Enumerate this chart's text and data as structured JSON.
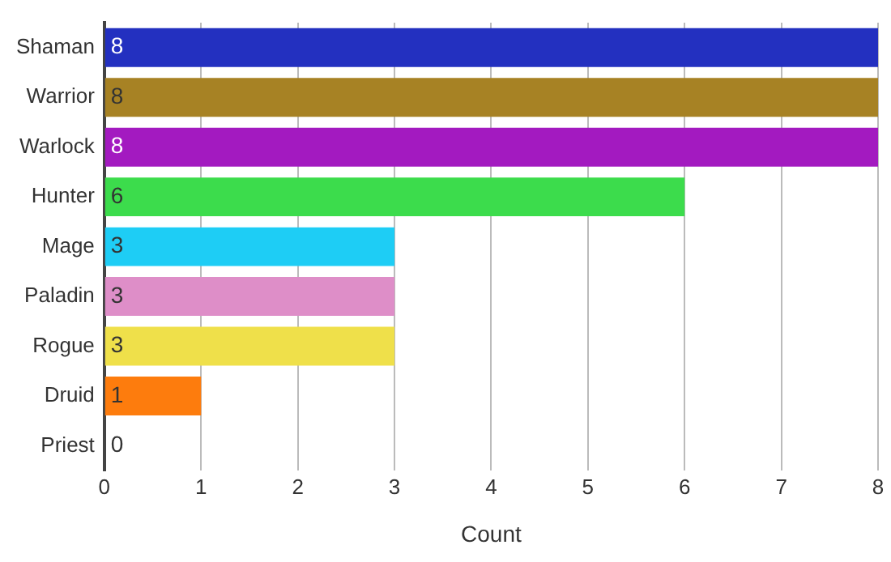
{
  "chart_data": {
    "type": "bar",
    "orientation": "horizontal",
    "xlabel": "Count",
    "categories": [
      "Shaman",
      "Warrior",
      "Warlock",
      "Hunter",
      "Mage",
      "Paladin",
      "Rogue",
      "Druid",
      "Priest"
    ],
    "values": [
      8,
      8,
      8,
      6,
      3,
      3,
      3,
      1,
      0
    ],
    "colors": [
      "#2330c0",
      "#a78224",
      "#a31ac0",
      "#3cdc4c",
      "#1ecdf5",
      "#de8ec8",
      "#efe04a",
      "#fd7c0d",
      "#ffffff"
    ],
    "xlim": [
      0,
      8
    ],
    "xticks": [
      0,
      1,
      2,
      3,
      4,
      5,
      6,
      7,
      8
    ],
    "grid": "x",
    "data_labels": true
  }
}
